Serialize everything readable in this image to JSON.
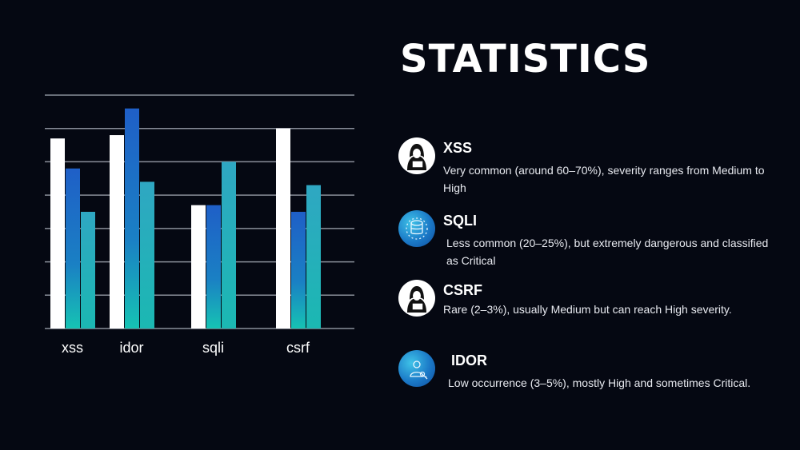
{
  "title": "STATISTICS",
  "chart_data": {
    "type": "bar",
    "categories": [
      "xss",
      "idor",
      "sqli",
      "csrf"
    ],
    "series": [
      {
        "values": [
          5.7,
          5.8,
          3.7,
          6.0
        ]
      },
      {
        "values": [
          4.8,
          6.6,
          3.7,
          3.5
        ]
      },
      {
        "values": [
          3.5,
          4.4,
          5.0,
          4.3
        ]
      }
    ],
    "ylim": [
      0,
      7
    ],
    "grid": true,
    "colors": [
      "#ffffff",
      "#1a5fc1",
      "#2bb2bd"
    ]
  },
  "stats": [
    {
      "label": "XSS",
      "desc": "Very common (around 60–70%), severity ranges from Medium to High",
      "icon": "hacker-icon"
    },
    {
      "label": "SQLI",
      "desc": "Less common (20–25%), but extremely dangerous and classified as Critical",
      "icon": "database-bug-icon"
    },
    {
      "label": "CSRF",
      "desc": "Rare (2–3%), usually Medium but can reach High severity.",
      "icon": "hacker-icon"
    },
    {
      "label": "IDOR",
      "desc": "Low occurrence (3–5%), mostly High and sometimes Critical.",
      "icon": "user-key-icon"
    }
  ]
}
